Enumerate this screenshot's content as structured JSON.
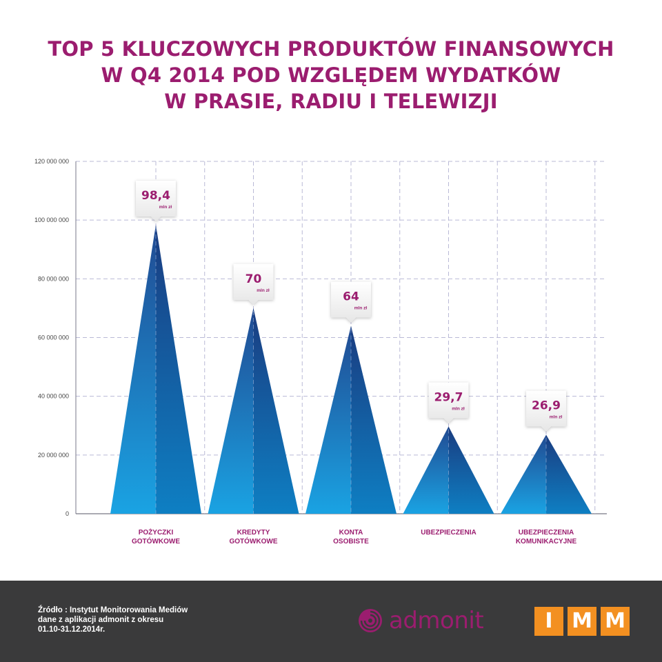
{
  "title_lines": [
    "TOP 5 KLUCZOWYCH PRODUKTÓW FINANSOWYCH",
    "W Q4 2014 POD WZGLĘDEM WYDATKÓW",
    "W PRASIE, RADIU I TELEWIZJI"
  ],
  "colors": {
    "title": "#9b1d6f",
    "footer_bg": "#3a3a3b",
    "triangle_light": "#1aa0e0",
    "triangle_dark": "#1f3f86",
    "grid": "#b9b9d6",
    "imm_orange": "#f39021"
  },
  "chart_data": {
    "type": "bar",
    "categories": [
      [
        "POŻYCZKI",
        "GOTÓWKOWE"
      ],
      [
        "KREDYTY",
        "GOTÓWKOWE"
      ],
      [
        "KONTA",
        "OSOBISTE"
      ],
      [
        "UBEZPIECZENIA"
      ],
      [
        "UBEZPIECZENIA",
        "KOMUNIKACYJNE"
      ]
    ],
    "values": [
      98400000,
      70000000,
      64000000,
      29700000,
      26900000
    ],
    "value_labels": [
      "98,4",
      "70",
      "64",
      "29,7",
      "26,9"
    ],
    "value_unit": "mln zł",
    "ylim": [
      0,
      120000000
    ],
    "yticks": [
      0,
      20000000,
      40000000,
      60000000,
      80000000,
      100000000,
      120000000
    ],
    "ytick_labels": [
      "0",
      "20 000 000",
      "40 000 000",
      "60 000 000",
      "80 000 000",
      "100 000 000",
      "120 000 000"
    ],
    "grid": true,
    "marker_shape": "triangle"
  },
  "footer": {
    "source_lines": [
      "Źródło : Instytut Monitorowania Mediów",
      "dane z aplikacji admonit z okresu",
      "01.10-31.12.2014r."
    ],
    "admonit_text": "admonit",
    "admonit_logo_icon": "spiral-shell-icon",
    "imm_letters": [
      "I",
      "M",
      "M"
    ]
  }
}
